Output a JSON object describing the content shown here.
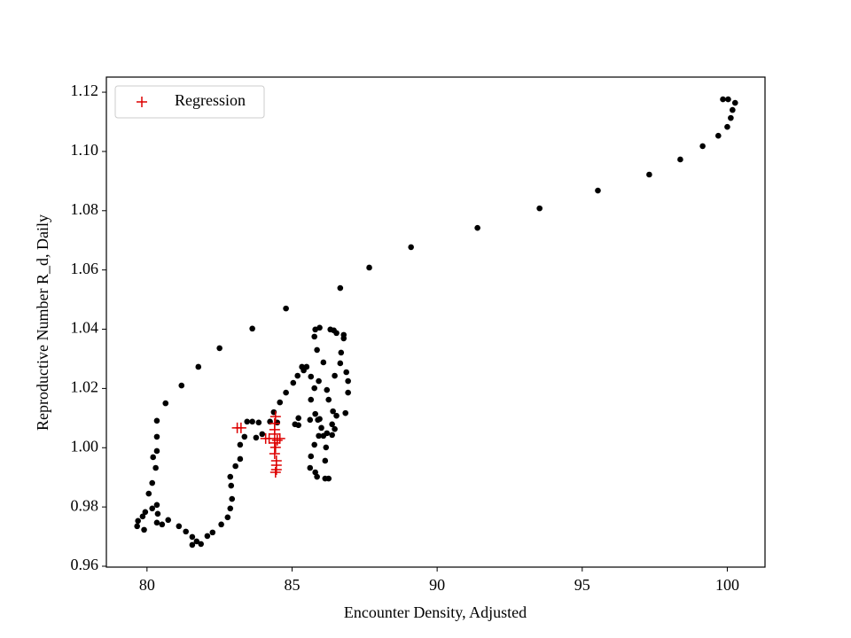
{
  "chart_data": {
    "type": "scatter",
    "xlabel": "Encounter Density, Adjusted",
    "ylabel": "Reproductive Number R_d, Daily",
    "xlim": [
      78.6,
      101.3
    ],
    "ylim": [
      0.9597,
      1.1251
    ],
    "xticks": [
      80,
      85,
      90,
      95,
      100
    ],
    "yticks": [
      0.96,
      0.98,
      {
        "value": 1.0,
        "label": "1.00"
      },
      1.02,
      1.04,
      1.06,
      1.08,
      {
        "value": 1.1,
        "label": "1.10"
      },
      1.12
    ],
    "legend": "upper left",
    "series": [
      {
        "color": "#000000",
        "marker": "o",
        "x": [
          80.64,
          81.19,
          81.77,
          82.5,
          83.63,
          84.79,
          86.66,
          87.66,
          89.1,
          91.39,
          93.53,
          95.54,
          97.31,
          98.38,
          99.15,
          99.69,
          100.0,
          100.12,
          100.18,
          100.27,
          99.85,
          100.03,
          80.34,
          80.34,
          80.34,
          80.21,
          80.3,
          80.18,
          80.06,
          79.94,
          79.85,
          79.69,
          79.66,
          79.9,
          80.18,
          80.34,
          80.37,
          80.34,
          80.52,
          80.73,
          81.1,
          81.34,
          81.56,
          81.71,
          81.56,
          81.86,
          82.08,
          82.26,
          82.56,
          82.78,
          82.87,
          82.93,
          82.9,
          82.87,
          83.05,
          83.21,
          83.21,
          83.36,
          83.45,
          83.63,
          83.85,
          83.76,
          83.97,
          84.24,
          84.37,
          84.58,
          84.79,
          85.04,
          85.19,
          85.34,
          85.5,
          85.65,
          85.77,
          85.65,
          85.8,
          85.62,
          85.22,
          85.1,
          85.22,
          85.95,
          86.01,
          86.2,
          86.38,
          86.41,
          86.26,
          86.2,
          86.47,
          86.66,
          86.69,
          86.78,
          86.32,
          86.44,
          86.53,
          86.78,
          86.87,
          86.93,
          86.93,
          86.84,
          86.53,
          86.47,
          86.38,
          86.08,
          85.92,
          85.77,
          85.65,
          85.62,
          85.8,
          85.86,
          86.14,
          86.26,
          86.14,
          86.17,
          85.89,
          85.77,
          85.8,
          85.95,
          85.86,
          86.08,
          85.92,
          85.4,
          84.49
        ],
        "values": [
          1.015,
          1.021,
          1.0273,
          1.0336,
          1.0402,
          1.047,
          1.0539,
          1.0608,
          1.0677,
          1.0742,
          1.0808,
          1.0868,
          1.0922,
          1.0973,
          1.1018,
          1.1053,
          1.1083,
          1.1113,
          1.114,
          1.1164,
          1.1176,
          1.1176,
          1.0091,
          1.0037,
          0.9989,
          0.9968,
          0.9932,
          0.9881,
          0.9845,
          0.9783,
          0.9768,
          0.9753,
          0.9735,
          0.9723,
          0.9795,
          0.9807,
          0.9777,
          0.9747,
          0.9741,
          0.9756,
          0.9735,
          0.9717,
          0.9699,
          0.9684,
          0.9672,
          0.9675,
          0.9702,
          0.9714,
          0.9741,
          0.9765,
          0.9795,
          0.9827,
          0.9872,
          0.9902,
          0.9938,
          0.9962,
          1.001,
          1.0037,
          1.0088,
          1.0088,
          1.0085,
          1.0034,
          1.0046,
          1.0088,
          1.012,
          1.0153,
          1.0186,
          1.0219,
          1.0243,
          1.0273,
          1.0273,
          1.024,
          1.0201,
          1.0162,
          1.0114,
          1.0094,
          1.0076,
          1.0079,
          1.01,
          1.0097,
          1.0067,
          1.0049,
          1.0079,
          1.0123,
          1.0162,
          1.0195,
          1.0243,
          1.0285,
          1.0321,
          1.0369,
          1.0399,
          1.0396,
          1.0387,
          1.0381,
          1.0255,
          1.0225,
          1.0186,
          1.0117,
          1.0108,
          1.0063,
          1.0043,
          1.004,
          1.004,
          1.001,
          0.9971,
          0.9932,
          0.9917,
          0.9902,
          0.9896,
          0.9896,
          0.9956,
          1.0001,
          1.0094,
          1.0375,
          1.0399,
          1.0405,
          1.033,
          1.0288,
          1.0225,
          1.0261,
          1.0085
        ]
      },
      {
        "name": "Regression",
        "color": "#dd0000",
        "marker": "+",
        "x": [
          83.11,
          83.24,
          84.09,
          84.21,
          84.4,
          84.4,
          84.4,
          84.4,
          84.43,
          84.46,
          84.46,
          84.43,
          84.49,
          84.58,
          84.4,
          84.43,
          84.46
        ],
        "values": [
          1.0067,
          1.0067,
          1.0031,
          1.0031,
          1.0082,
          1.0046,
          1.0016,
          0.998,
          1.0105,
          0.9956,
          0.9926,
          0.9917,
          1.0025,
          1.0031,
          1.0061,
          1.0001,
          0.9941
        ]
      }
    ]
  }
}
